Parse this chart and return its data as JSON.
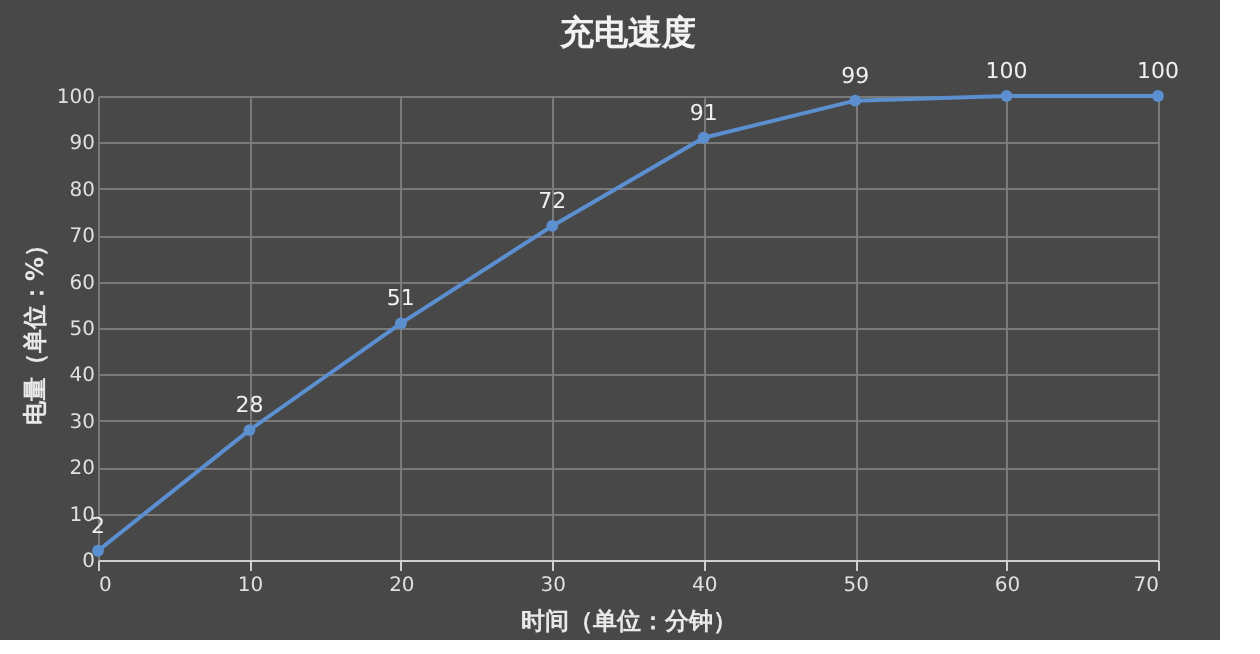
{
  "chart_data": {
    "type": "line",
    "title": "充电速度",
    "xlabel": "时间（单位：分钟）",
    "ylabel": "电量（单位：%）",
    "x": [
      0,
      10,
      20,
      30,
      40,
      50,
      60,
      70
    ],
    "series": [
      {
        "color": "#5b8fd0",
        "values": [
          2,
          28,
          51,
          72,
          91,
          99,
          100,
          100
        ]
      }
    ],
    "xlim": [
      0,
      70
    ],
    "xticks": [
      0,
      10,
      20,
      30,
      40,
      50,
      60,
      70
    ],
    "ylim": [
      0,
      100
    ],
    "yticks": [
      0,
      10,
      20,
      30,
      40,
      50,
      60,
      70,
      80,
      90,
      100
    ],
    "grid": true,
    "marker": "circle",
    "line_style": "solid",
    "data_labels": true
  }
}
